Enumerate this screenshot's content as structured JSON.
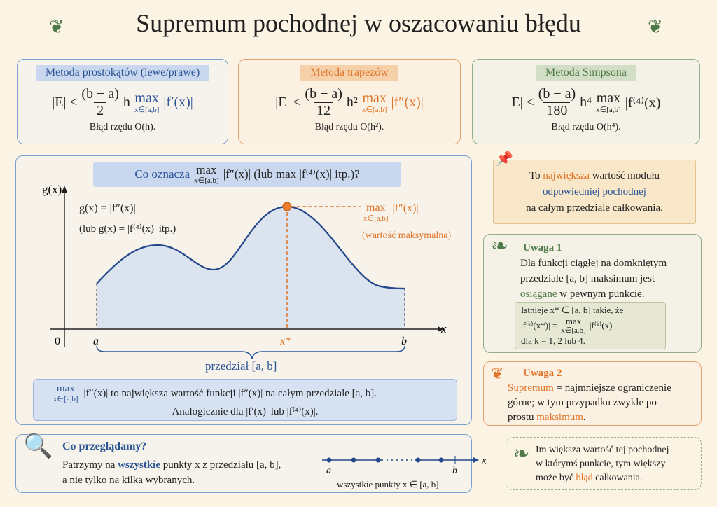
{
  "title": "Supremum pochodnej w oszacowaniu błędu",
  "methods": [
    {
      "name": "Metoda prostokątów (lewe/prawe)",
      "lhs": "|E| ≤",
      "numerator": "(b − a)",
      "denominator": "2",
      "factor": "h",
      "max": "max",
      "sub": "x∈[a,b]",
      "derivative": "|f′(x)|",
      "order": "Błąd rzędu O(h)."
    },
    {
      "name": "Metoda trapezów",
      "lhs": "|E| ≤",
      "numerator": "(b − a)",
      "denominator": "12",
      "factor": "h²",
      "max": "max",
      "sub": "x∈[a,b]",
      "derivative": "|f″(x)|",
      "order": "Błąd rzędu O(h²)."
    },
    {
      "name": "Metoda Simpsona",
      "lhs": "|E| ≤",
      "numerator": "(b − a)",
      "denominator": "180",
      "factor": "h⁴",
      "max": "max",
      "sub": "x∈[a,b]",
      "derivative": "|f⁽⁴⁾(x)|",
      "order": "Błąd rzędu O(h⁴)."
    }
  ],
  "graph": {
    "heading_pre": "Co oznacza",
    "heading_max": "max",
    "heading_sub": "x∈[a,b]",
    "heading_post": "|f″(x)| (lub max |f⁽⁴⁾(x)| itp.)?",
    "y_label": "g(x)",
    "x_label": "x",
    "origin": "0",
    "a": "a",
    "b": "b",
    "xstar": "x*",
    "def1": "g(x) = |f″(x)|",
    "def2": "(lub g(x) = |f⁽⁴⁾(x)| itp.)",
    "max_label": "max",
    "max_sub": "x∈[a,b]",
    "max_deriv": "|f″(x)|",
    "max_note": "(wartość maksymalna)",
    "interval": "przedział [a, b]",
    "note_max": "max",
    "note_sub": "x∈[a,b]",
    "note1": "|f″(x)|  to największa wartość funkcji  |f″(x)|  na całym przedziale [a, b].",
    "note2": "Analogicznie dla |f′(x)| lub |f⁽⁴⁾(x)|."
  },
  "pin_note": {
    "pre": "To ",
    "highlight": "największa",
    "post": " wartość modułu",
    "line2": "odpowiedniej pochodnej",
    "line3": "na całym przedziale całkowania."
  },
  "remark1": {
    "title": "Uwaga 1",
    "line1": "Dla funkcji ciągłej na domkniętym",
    "line2": "przedziale [a, b] maksimum jest",
    "highlight": "osiągane",
    "line3_post": " w pewnym punkcie.",
    "box_line1": "Istnieje x* ∈ [a, b] takie, że",
    "box_lhs": "|f⁽ᵏ⁾(x*)| =",
    "box_max": "max",
    "box_sub": "x∈[a,b]",
    "box_rhs": "|f⁽ᵏ⁾(x)|",
    "box_line3": "dla k = 1, 2 lub 4."
  },
  "remark2": {
    "title": "Uwaga 2",
    "highlight1": "Supremum",
    "line1_post": " = najmniejsze ograniczenie",
    "line2": "górne; w tym przypadku zwykle po",
    "line3_pre": "prostu ",
    "highlight2": "maksimum",
    "line3_post": "."
  },
  "scan": {
    "title": "Co przeglądamy?",
    "pre": "Patrzymy na ",
    "highlight": "wszystkie",
    "post": " punkty x z przedziału [a, b],",
    "line2": "a nie tylko na kilka wybranych.",
    "a": "a",
    "b": "b",
    "x": "x",
    "caption": "wszystkie punkty x ∈ [a, b]"
  },
  "final": {
    "line1": "Im większa wartość tej pochodnej",
    "line2": "w którymś punkcie, tym większy",
    "line3_pre": "może być ",
    "highlight": "błąd",
    "line3_post": " całkowania."
  }
}
